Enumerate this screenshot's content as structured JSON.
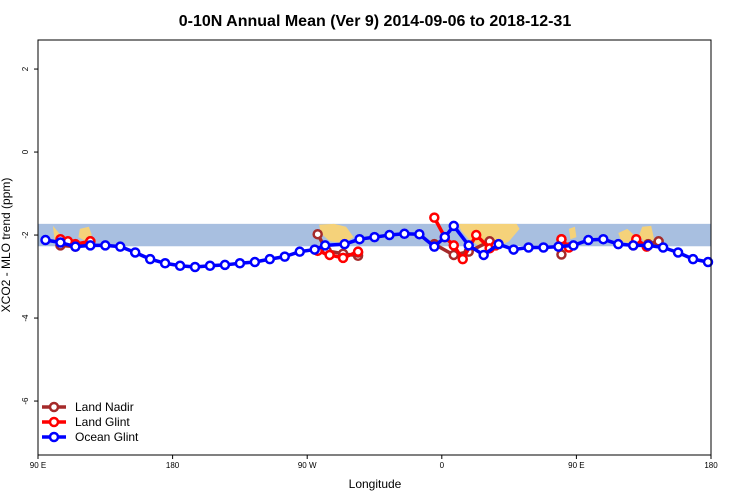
{
  "chart_data": {
    "type": "line",
    "title": "0-10N Annual Mean (Ver 9)   2014-09-06 to 2018-12-31",
    "xlabel": "Longitude",
    "ylabel": "XCO2 - MLO trend (ppm)",
    "xlim": [
      90,
      540
    ],
    "ylim": [
      -7.3,
      2.7
    ],
    "x_ticks": [
      {
        "value": 90,
        "label": "90 E"
      },
      {
        "value": 180,
        "label": "180"
      },
      {
        "value": 270,
        "label": "90 W"
      },
      {
        "value": 360,
        "label": "0"
      },
      {
        "value": 450,
        "label": "90 E"
      },
      {
        "value": 540,
        "label": "180"
      }
    ],
    "y_ticks": [
      {
        "value": 2,
        "label": "2"
      },
      {
        "value": 0,
        "label": "0"
      },
      {
        "value": -2,
        "label": "-2"
      },
      {
        "value": -4,
        "label": "-4"
      },
      {
        "value": -6,
        "label": "-6"
      }
    ],
    "band": {
      "ymin": -2.27,
      "ymax": -1.73,
      "color": "#a8bfe0"
    },
    "land_color": "#f5d27a",
    "series": [
      {
        "name": "Land Nadir",
        "color": "#a52a2a",
        "segments": [
          {
            "x": [
              105,
              115,
              125
            ],
            "y": [
              -2.25,
              -2.28,
              -2.15
            ]
          },
          {
            "x": [
              277,
              283,
              294,
              304,
              304
            ],
            "y": [
              -1.98,
              -2.38,
              -2.45,
              -2.5,
              -2.42
            ]
          },
          {
            "x": [
              355,
              368,
              378,
              392
            ],
            "y": [
              -2.22,
              -2.48,
              -2.4,
              -2.15
            ]
          },
          {
            "x": [
              440,
              440
            ],
            "y": [
              -2.1,
              -2.47
            ]
          },
          {
            "x": [
              488,
              498,
              505
            ],
            "y": [
              -2.25,
              -2.22,
              -2.15
            ]
          }
        ]
      },
      {
        "name": "Land Glint",
        "color": "#ff0000",
        "segments": [
          {
            "x": [
              105,
              110,
              115,
              125
            ],
            "y": [
              -2.1,
              -2.15,
              -2.22,
              -2.15
            ]
          },
          {
            "x": [
              277,
              285,
              294,
              304
            ],
            "y": [
              -2.38,
              -2.48,
              -2.55,
              -2.4
            ]
          },
          {
            "x": [
              355,
              362,
              368,
              374,
              383,
              392,
              396
            ],
            "y": [
              -1.58,
              -2.05,
              -2.25,
              -2.58,
              -2.0,
              -2.32,
              -2.25
            ]
          },
          {
            "x": [
              440,
              445
            ],
            "y": [
              -2.1,
              -2.3
            ]
          },
          {
            "x": [
              490,
              497
            ],
            "y": [
              -2.1,
              -2.28
            ]
          }
        ]
      },
      {
        "name": "Ocean Glint",
        "color": "#0000ff",
        "segments": [
          {
            "x": [
              95,
              105,
              115,
              125,
              135,
              145,
              155,
              165,
              175,
              185,
              195,
              205,
              215,
              225,
              235,
              245,
              255,
              265,
              275,
              282,
              295,
              305,
              315,
              325,
              335,
              345,
              355,
              362,
              368,
              378,
              388,
              398,
              408,
              418,
              428,
              438,
              448,
              458,
              468,
              478,
              488,
              498,
              508,
              518,
              528,
              538
            ],
            "y": [
              -2.12,
              -2.18,
              -2.28,
              -2.25,
              -2.25,
              -2.28,
              -2.42,
              -2.58,
              -2.68,
              -2.74,
              -2.77,
              -2.74,
              -2.72,
              -2.68,
              -2.65,
              -2.58,
              -2.52,
              -2.4,
              -2.35,
              -2.25,
              -2.22,
              -2.1,
              -2.05,
              -2.0,
              -1.97,
              -1.98,
              -2.28,
              -2.05,
              -1.78,
              -2.25,
              -2.48,
              -2.22,
              -2.35,
              -2.3,
              -2.3,
              -2.28,
              -2.25,
              -2.12,
              -2.1,
              -2.22,
              -2.25,
              -2.25,
              -2.3,
              -2.42,
              -2.58,
              -2.65
            ]
          }
        ]
      }
    ],
    "legend": {
      "position": "bottom-left",
      "entries": [
        "Land Nadir",
        "Land Glint",
        "Ocean Glint"
      ]
    }
  }
}
